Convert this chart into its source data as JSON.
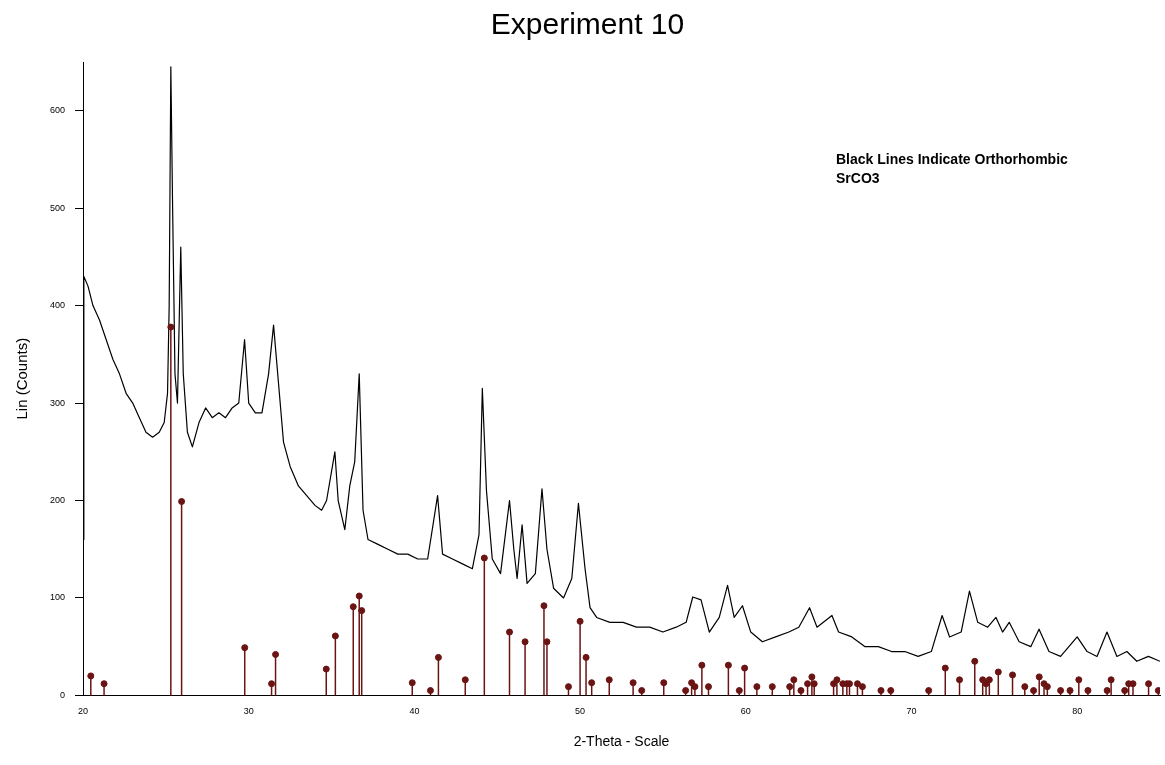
{
  "chart_data": {
    "type": "line",
    "title": "Experiment 10",
    "xlabel": "2-Theta - Scale",
    "ylabel": "Lin (Counts)",
    "xlim": [
      20,
      85
    ],
    "xticks": [
      20,
      30,
      40,
      50,
      60,
      70,
      80
    ],
    "ylim": [
      0,
      650
    ],
    "yticks": [
      0,
      100,
      200,
      300,
      400,
      500,
      600
    ],
    "grid": false,
    "legend": false,
    "annotations": [
      "Black Lines Indicate Orthorhombic SrCO3"
    ],
    "series": [
      {
        "color": "#000000",
        "marker": "none",
        "x": [
          20.0,
          20.05,
          20.3,
          20.6,
          21,
          21.4,
          21.8,
          22.2,
          22.6,
          23,
          23.4,
          23.8,
          24.2,
          24.6,
          24.9,
          25.1,
          25.2,
          25.3,
          25.4,
          25.55,
          25.7,
          25.9,
          26.05,
          26.3,
          26.6,
          27,
          27.4,
          27.8,
          28.2,
          28.6,
          29,
          29.4,
          29.75,
          30,
          30.4,
          30.8,
          31.2,
          31.5,
          31.8,
          32.1,
          32.5,
          33,
          33.5,
          34,
          34.4,
          34.7,
          35.2,
          35.4,
          35.8,
          36.1,
          36.4,
          36.67,
          36.9,
          37.2,
          37.8,
          38.4,
          39,
          39.6,
          40.2,
          40.8,
          41.4,
          41.7,
          42.3,
          42.9,
          43.5,
          43.9,
          44.1,
          44.35,
          44.7,
          45.2,
          45.74,
          46,
          46.2,
          46.5,
          46.8,
          47.3,
          47.7,
          48,
          48.4,
          49,
          49.5,
          49.9,
          50.3,
          50.6,
          51,
          51.8,
          52.6,
          53.4,
          54.2,
          55,
          55.8,
          56.4,
          56.8,
          57.3,
          57.8,
          58.4,
          58.9,
          59.3,
          59.8,
          60.3,
          61,
          61.8,
          62.6,
          63.2,
          63.85,
          64.3,
          65.2,
          65.6,
          66.4,
          67.2,
          68,
          68.8,
          69.6,
          70.4,
          71.2,
          71.85,
          72.3,
          73,
          73.5,
          74,
          74.6,
          75.1,
          75.5,
          75.9,
          76.5,
          77.2,
          77.7,
          78.3,
          79,
          79.5,
          80,
          80.6,
          81.2,
          81.8,
          82.4,
          83,
          83.6,
          84.3,
          85
        ],
        "values": [
          160,
          430,
          420,
          400,
          385,
          365,
          345,
          330,
          310,
          300,
          285,
          270,
          265,
          270,
          280,
          310,
          400,
          645,
          510,
          330,
          300,
          460,
          330,
          270,
          255,
          280,
          295,
          285,
          290,
          285,
          295,
          300,
          365,
          300,
          290,
          290,
          330,
          380,
          320,
          260,
          235,
          215,
          205,
          195,
          190,
          200,
          250,
          200,
          170,
          215,
          240,
          330,
          190,
          160,
          155,
          150,
          145,
          145,
          140,
          140,
          205,
          145,
          140,
          135,
          130,
          165,
          315,
          210,
          140,
          125,
          200,
          150,
          120,
          175,
          115,
          125,
          212,
          150,
          110,
          100,
          120,
          197,
          130,
          90,
          80,
          75,
          75,
          70,
          70,
          65,
          70,
          75,
          101,
          98,
          65,
          80,
          113,
          80,
          92,
          65,
          55,
          60,
          65,
          70,
          90,
          70,
          82,
          65,
          60,
          50,
          50,
          45,
          45,
          40,
          45,
          82,
          60,
          65,
          107,
          75,
          70,
          80,
          65,
          75,
          55,
          50,
          68,
          45,
          40,
          50,
          60,
          45,
          40,
          65,
          40,
          45,
          35,
          40,
          35
        ]
      },
      {
        "type": "lollipop",
        "color": "#6b1414",
        "x": [
          20.47,
          21.27,
          25.3,
          25.95,
          29.76,
          31.38,
          31.62,
          34.68,
          35.23,
          36.31,
          36.67,
          36.82,
          39.87,
          40.97,
          41.45,
          43.07,
          44.22,
          45.74,
          46.68,
          47.82,
          48.0,
          49.3,
          50.0,
          50.36,
          50.7,
          51.76,
          53.2,
          53.72,
          55.05,
          56.37,
          56.73,
          56.93,
          57.35,
          57.75,
          58.95,
          59.61,
          59.93,
          60.67,
          61.6,
          62.65,
          62.9,
          63.33,
          63.73,
          63.99,
          64.13,
          65.3,
          65.5,
          65.86,
          66.1,
          66.26,
          66.74,
          67.04,
          68.16,
          68.75,
          71.04,
          72.04,
          72.9,
          73.82,
          74.3,
          74.5,
          74.7,
          75.24,
          76.1,
          76.84,
          77.37,
          77.71,
          78.0,
          78.2,
          79.0,
          79.57,
          80.1,
          80.65,
          81.81,
          82.05,
          82.87,
          83.11,
          83.37,
          84.31,
          84.9
        ],
        "values": [
          20,
          12,
          378,
          199,
          49,
          12,
          42,
          27,
          61,
          91,
          102,
          87,
          13,
          5,
          39,
          16,
          141,
          65,
          55,
          92,
          55,
          9,
          76,
          39,
          13,
          16,
          13,
          5,
          13,
          5,
          13,
          9,
          31,
          9,
          31,
          5,
          28,
          9,
          9,
          9,
          16,
          5,
          12,
          19,
          12,
          12,
          16,
          12,
          12,
          12,
          12,
          9,
          5,
          5,
          5,
          28,
          16,
          35,
          16,
          12,
          16,
          24,
          21,
          9,
          5,
          19,
          12,
          9,
          5,
          5,
          16,
          5,
          5,
          16,
          5,
          12,
          12,
          12,
          5
        ]
      }
    ]
  }
}
